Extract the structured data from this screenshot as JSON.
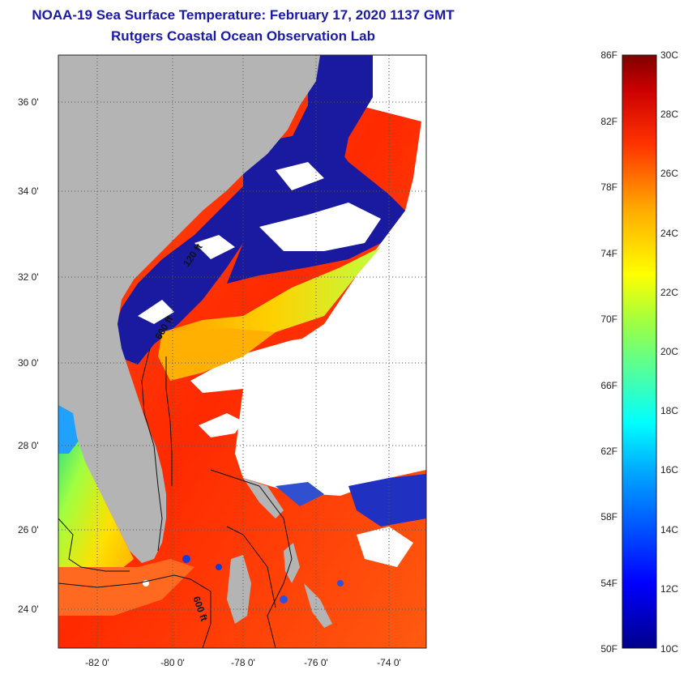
{
  "title": {
    "line1": "NOAA-19 Sea Surface Temperature:  February 17, 2020 1137 GMT",
    "line2": "Rutgers Coastal Ocean Observation Lab"
  },
  "map": {
    "lat_ticks": [
      "36 0'",
      "34 0'",
      "32 0'",
      "30 0'",
      "28 0'",
      "26 0'",
      "24 0'"
    ],
    "lon_ticks": [
      "-82 0'",
      "-80 0'",
      "-78 0'",
      "-76 0'",
      "-74 0'"
    ],
    "contour_labels": [
      "120 ft",
      "600 ft",
      "600 ft"
    ],
    "colors": {
      "land": "#b4b4b4",
      "cloud": "#ffffff",
      "cold_water": "#1a1aa0",
      "warm_water": "#ff3a10",
      "mid_water": "#ffd020"
    }
  },
  "colorbar": {
    "fahrenheit_labels": [
      "86F",
      "82F",
      "78F",
      "74F",
      "70F",
      "66F",
      "62F",
      "58F",
      "54F",
      "50F"
    ],
    "celsius_labels": [
      "30C",
      "28C",
      "26C",
      "24C",
      "22C",
      "20C",
      "18C",
      "16C",
      "14C",
      "12C",
      "10C"
    ],
    "range_c": [
      10,
      30
    ],
    "range_f": [
      50,
      86
    ],
    "colors": [
      "#00008b",
      "#0000ff",
      "#00aaff",
      "#00ffff",
      "#80ff80",
      "#ffff00",
      "#ffaa00",
      "#ff3300",
      "#cc0000",
      "#800000"
    ]
  }
}
